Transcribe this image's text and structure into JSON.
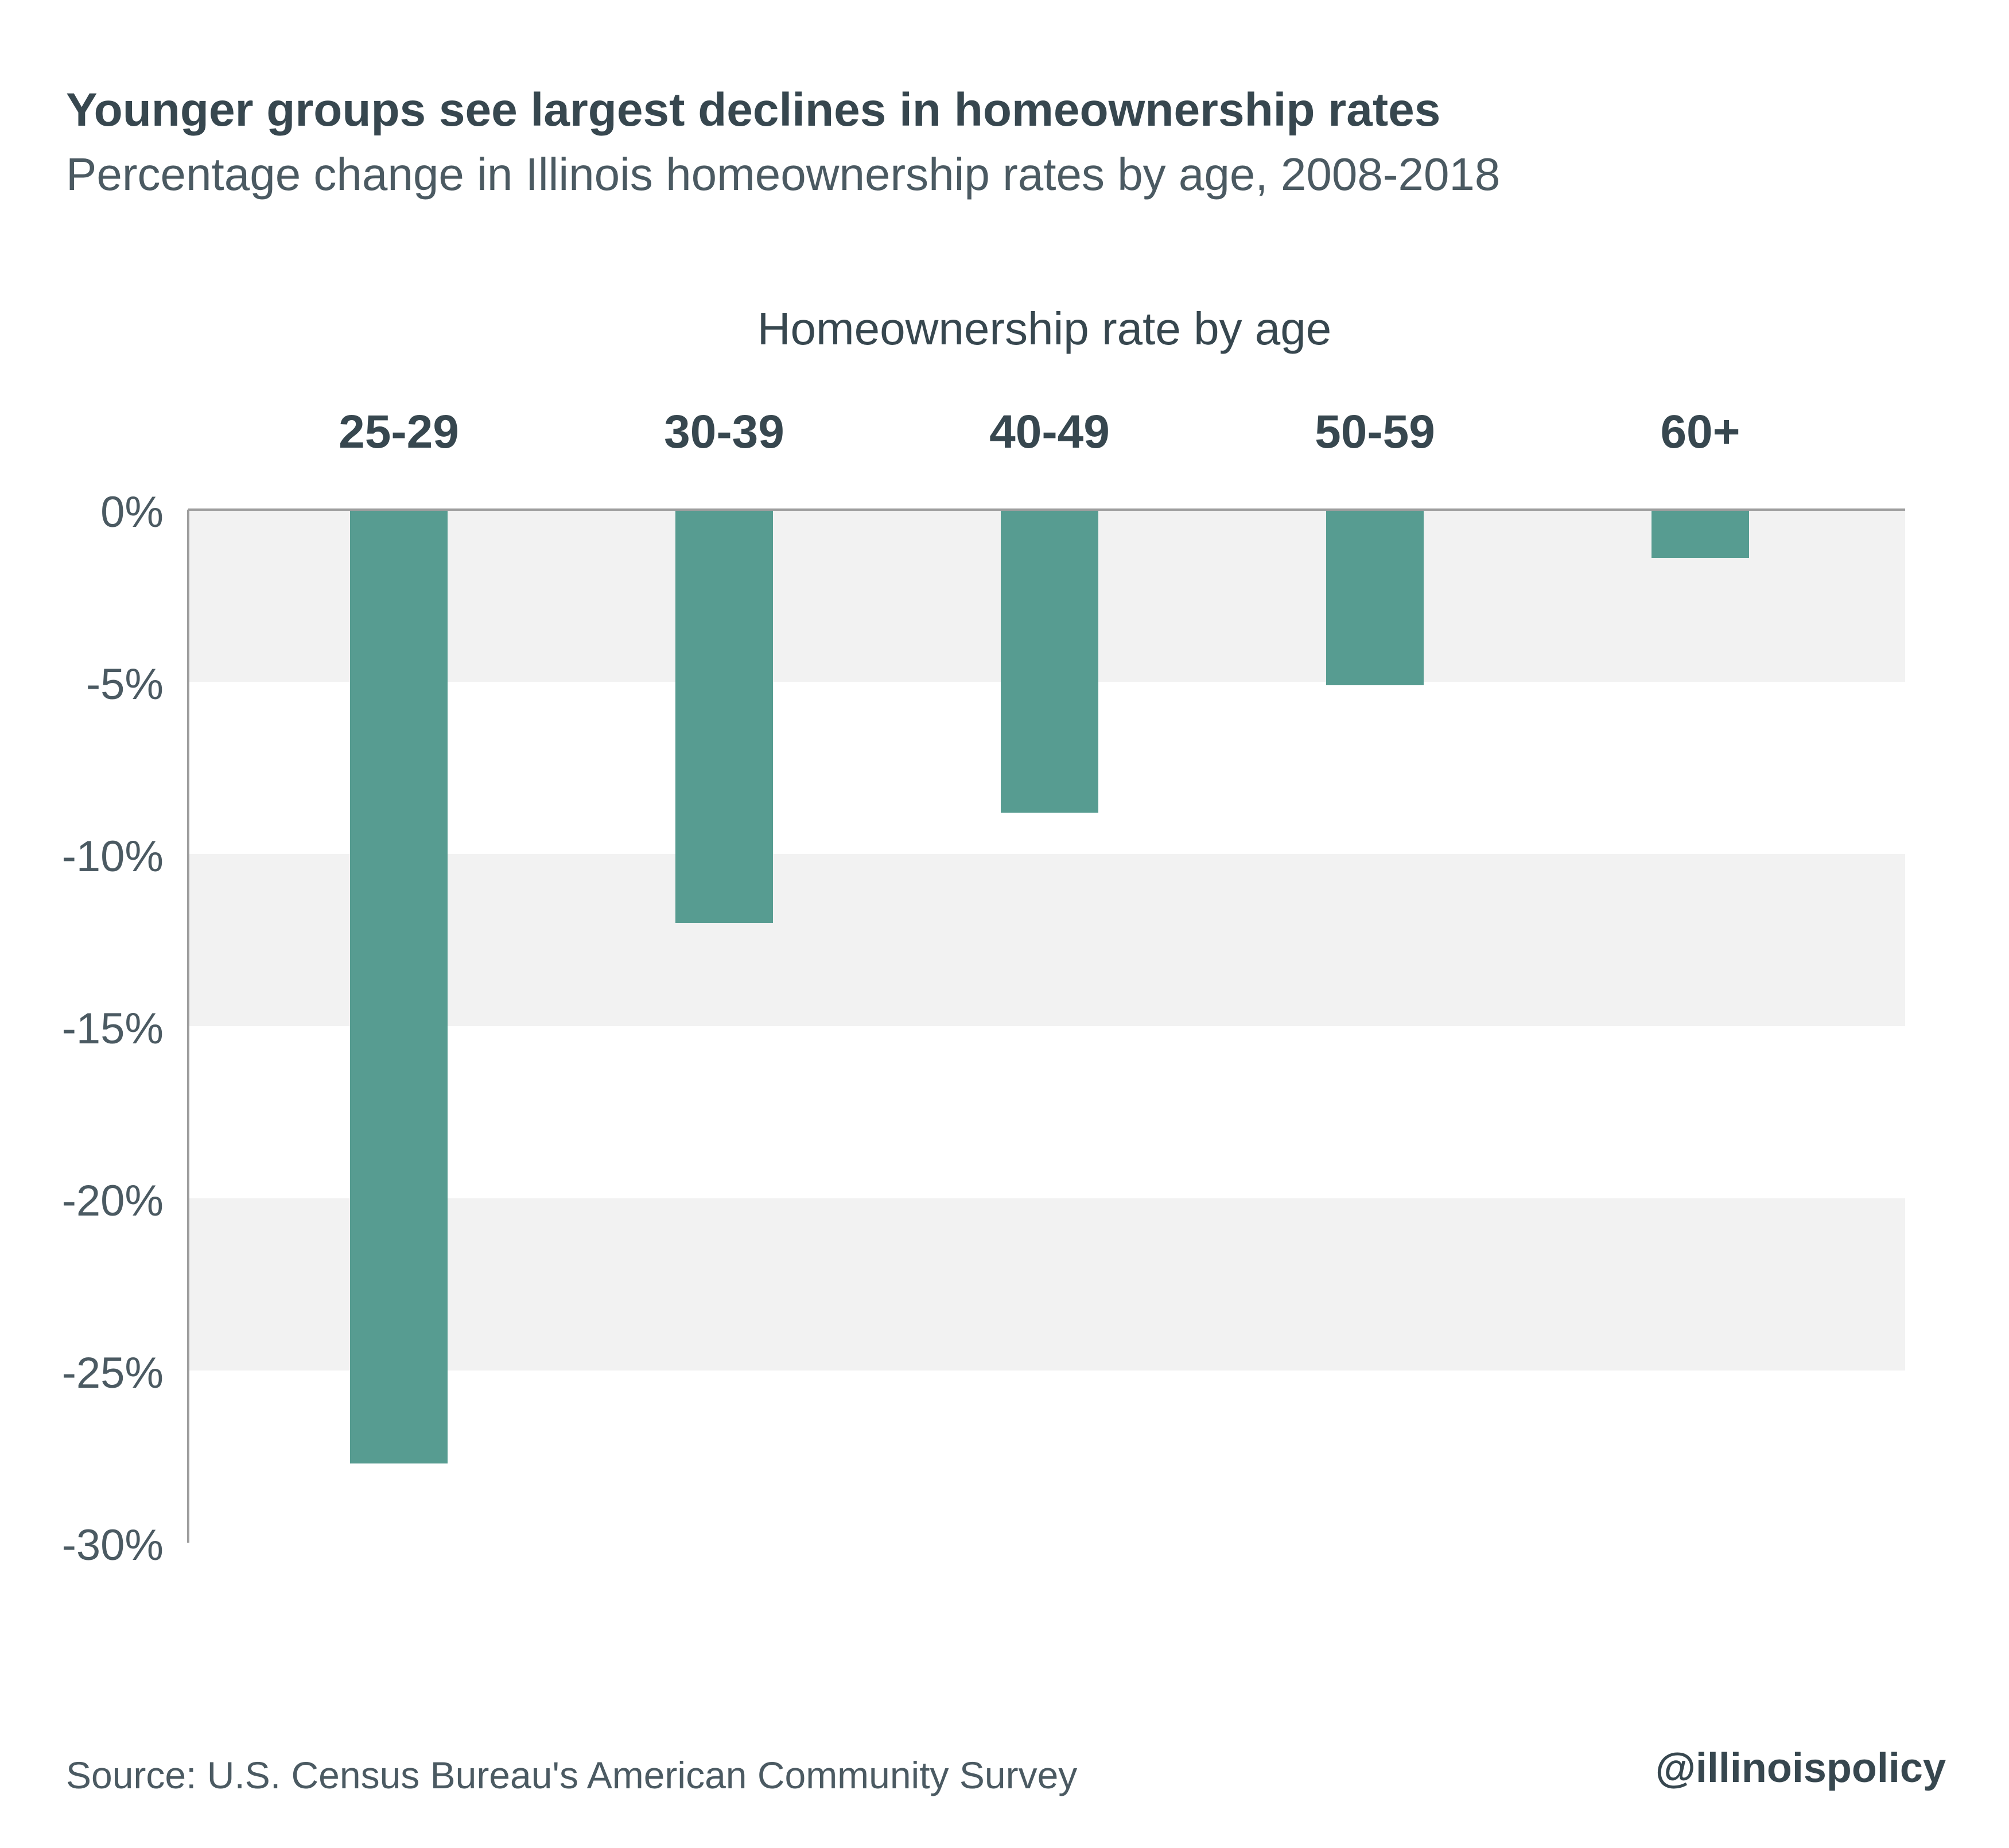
{
  "title": "Younger groups see largest declines in homeownership rates",
  "subtitle": "Percentage change in Illinois homeownership rates by age, 2008-2018",
  "source": "Source: U.S. Census Bureau's American Community Survey",
  "handle": "@illinoispolicy",
  "colors": {
    "bar": "#579c91",
    "band": "#f2f2f2",
    "axis": "#9e9e9e",
    "text_dark": "#37474f",
    "text_mid": "#4b5a62"
  },
  "chart_data": {
    "type": "bar",
    "xlabel": "Homeownership rate by age",
    "categories": [
      "25-29",
      "30-39",
      "40-49",
      "50-59",
      "60+"
    ],
    "values": [
      -27.7,
      -12.0,
      -8.8,
      -5.1,
      -1.4
    ],
    "ylim": [
      -30,
      0
    ],
    "yticks": [
      0,
      -5,
      -10,
      -15,
      -20,
      -25,
      -30
    ],
    "ytick_labels": [
      "0%",
      "-5%",
      "-10%",
      "-15%",
      "-20%",
      "-25%",
      "-30%"
    ],
    "xaxis_position": "top",
    "grid": "alternating horizontal bands",
    "legend": "none"
  }
}
